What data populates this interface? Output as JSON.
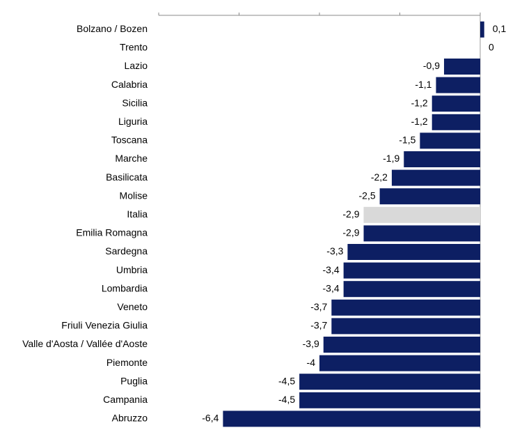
{
  "chart_data": {
    "type": "hbar",
    "categories": [
      "Bolzano / Bozen",
      "Trento",
      "Lazio",
      "Calabria",
      "Sicilia",
      "Liguria",
      "Toscana",
      "Marche",
      "Basilicata",
      "Molise",
      "Italia",
      "Emilia Romagna",
      "Sardegna",
      "Umbria",
      "Lombardia",
      "Veneto",
      "Friuli Venezia Giulia",
      "Valle d'Aosta / Vallée d'Aoste",
      "Piemonte",
      "Puglia",
      "Campania",
      "Abruzzo"
    ],
    "values": [
      0.1,
      0,
      -0.9,
      -1.1,
      -1.2,
      -1.2,
      -1.5,
      -1.9,
      -2.2,
      -2.5,
      -2.9,
      -2.9,
      -3.3,
      -3.4,
      -3.4,
      -3.7,
      -3.7,
      -3.9,
      -4,
      -4.5,
      -4.5,
      -6.4
    ],
    "value_labels": [
      "0,1",
      "0",
      "-0,9",
      "-1,1",
      "-1,2",
      "-1,2",
      "-1,5",
      "-1,9",
      "-2,2",
      "-2,5",
      "-2,9",
      "-2,9",
      "-3,3",
      "-3,4",
      "-3,4",
      "-3,7",
      "-3,7",
      "-3,9",
      "-4",
      "-4,5",
      "-4,5",
      "-6,4"
    ],
    "colors": [
      "#0d1f63",
      "#0d1f63",
      "#0d1f63",
      "#0d1f63",
      "#0d1f63",
      "#0d1f63",
      "#0d1f63",
      "#0d1f63",
      "#0d1f63",
      "#0d1f63",
      "#d9d9d9",
      "#0d1f63",
      "#0d1f63",
      "#0d1f63",
      "#0d1f63",
      "#0d1f63",
      "#0d1f63",
      "#0d1f63",
      "#0d1f63",
      "#0d1f63",
      "#0d1f63",
      "#0d1f63"
    ],
    "xlim": [
      -8,
      0
    ],
    "xticks": [
      -8,
      -6,
      -4,
      -2,
      0
    ]
  }
}
